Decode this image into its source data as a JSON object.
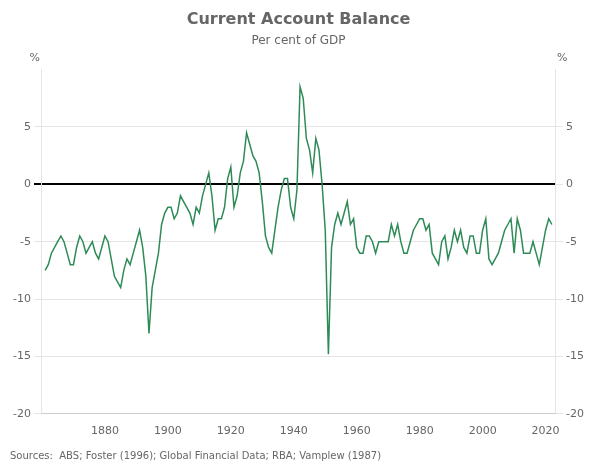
{
  "chart_data": {
    "type": "line",
    "title": "Current Account Balance",
    "subtitle": "Per cent of GDP",
    "source": "Sources:  ABS; Foster (1996); Global Financial Data; RBA; Vamplew (1987)",
    "y_label": "%",
    "y2_label": "%",
    "color": "#2e8b57",
    "grid": true,
    "legend": false,
    "xlim": [
      1860,
      2023
    ],
    "xticks": [
      1880,
      1900,
      1920,
      1940,
      1960,
      1980,
      2000,
      2020
    ],
    "ylim": [
      -20,
      10
    ],
    "yticks": [
      -20,
      -15,
      -10,
      -5,
      0,
      5
    ],
    "y2lim": [
      -20,
      10
    ],
    "y2ticks": [
      -20,
      -15,
      -10,
      -5,
      0,
      5
    ],
    "x": [
      1861,
      1862,
      1863,
      1864,
      1865,
      1866,
      1867,
      1868,
      1869,
      1870,
      1871,
      1872,
      1873,
      1874,
      1875,
      1876,
      1877,
      1878,
      1879,
      1880,
      1881,
      1882,
      1883,
      1884,
      1885,
      1886,
      1887,
      1888,
      1889,
      1890,
      1891,
      1892,
      1893,
      1894,
      1895,
      1896,
      1897,
      1898,
      1899,
      1900,
      1901,
      1902,
      1903,
      1904,
      1905,
      1906,
      1907,
      1908,
      1909,
      1910,
      1911,
      1912,
      1913,
      1914,
      1915,
      1916,
      1917,
      1918,
      1919,
      1920,
      1921,
      1922,
      1923,
      1924,
      1925,
      1926,
      1927,
      1928,
      1929,
      1930,
      1931,
      1932,
      1933,
      1934,
      1935,
      1936,
      1937,
      1938,
      1939,
      1940,
      1941,
      1942,
      1943,
      1944,
      1945,
      1946,
      1947,
      1948,
      1949,
      1950,
      1951,
      1952,
      1953,
      1954,
      1955,
      1956,
      1957,
      1958,
      1959,
      1960,
      1961,
      1962,
      1963,
      1964,
      1965,
      1966,
      1967,
      1968,
      1969,
      1970,
      1971,
      1972,
      1973,
      1974,
      1975,
      1976,
      1977,
      1978,
      1979,
      1980,
      1981,
      1982,
      1983,
      1984,
      1985,
      1986,
      1987,
      1988,
      1989,
      1990,
      1991,
      1992,
      1993,
      1994,
      1995,
      1996,
      1997,
      1998,
      1999,
      2000,
      2001,
      2002,
      2003,
      2004,
      2005,
      2006,
      2007,
      2008,
      2009,
      2010,
      2011,
      2012,
      2013,
      2014,
      2015,
      2016,
      2017,
      2018,
      2019,
      2020,
      2021,
      2022
    ],
    "values": [
      -7.5,
      -7.0,
      -6.0,
      -5.5,
      -5.0,
      -4.5,
      -5.0,
      -6.0,
      -7.0,
      -7.0,
      -5.5,
      -4.5,
      -5.0,
      -6.0,
      -5.5,
      -5.0,
      -6.0,
      -6.5,
      -5.5,
      -4.5,
      -5.0,
      -6.5,
      -8.0,
      -8.5,
      -9.0,
      -7.5,
      -6.5,
      -7.0,
      -6.0,
      -5.0,
      -4.0,
      -5.5,
      -8.0,
      -13.0,
      -9.0,
      -7.5,
      -6.0,
      -3.5,
      -2.5,
      -2.0,
      -2.0,
      -3.0,
      -2.5,
      -1.0,
      -1.5,
      -2.0,
      -2.5,
      -3.5,
      -2.0,
      -2.5,
      -1.0,
      0.0,
      1.0,
      -1.0,
      -4.0,
      -3.0,
      -3.0,
      -2.0,
      0.5,
      1.5,
      -2.0,
      -1.0,
      1.0,
      2.0,
      4.5,
      3.5,
      2.5,
      2.0,
      1.0,
      -1.5,
      -4.5,
      -5.5,
      -6.0,
      -4.0,
      -2.0,
      -0.5,
      0.5,
      0.5,
      -2.0,
      -3.0,
      -0.5,
      8.5,
      7.5,
      4.0,
      3.0,
      1.0,
      4.0,
      3.0,
      0.0,
      -4.0,
      -14.8,
      -5.5,
      -3.5,
      -2.5,
      -3.5,
      -2.5,
      -1.5,
      -3.5,
      -3.0,
      -5.5,
      -6.0,
      -6.0,
      -4.5,
      -4.5,
      -5.0,
      -6.0,
      -5.0,
      -5.0,
      -5.0,
      -5.0,
      -3.5,
      -4.5,
      -3.5,
      -5.0,
      -6.0,
      -6.0,
      -5.0,
      -4.0,
      -3.5,
      -3.0,
      -3.0,
      -4.0,
      -3.5,
      -6.0,
      -6.5,
      -7.0,
      -5.0,
      -4.5,
      -6.5,
      -5.5,
      -4.0,
      -5.0,
      -4.0,
      -5.5,
      -6.0,
      -4.5,
      -4.5,
      -6.0,
      -6.0,
      -4.0,
      -3.0,
      -6.5,
      -7.0,
      -6.5,
      -6.0,
      -5.0,
      -4.0,
      -3.5,
      -3.0,
      -6.0,
      -3.0,
      -4.0,
      -6.0,
      -6.0,
      -6.0,
      -5.0,
      -6.0,
      -7.0,
      -5.5,
      -4.0,
      -3.0,
      -3.5
    ]
  }
}
